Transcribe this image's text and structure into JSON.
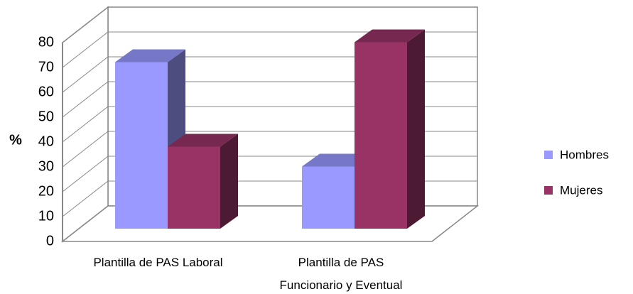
{
  "chart_data": {
    "type": "bar3d",
    "y_label": "%",
    "categories": [
      "Plantilla de PAS Laboral",
      "Plantilla de PAS Funcionario y Eventual"
    ],
    "series": [
      {
        "name": "Hombres",
        "color": "#9999ff",
        "values": [
          67,
          25
        ]
      },
      {
        "name": "Mujeres",
        "color": "#993366",
        "values": [
          33,
          75
        ]
      }
    ],
    "ylim": [
      0,
      80
    ],
    "yticks": [
      0,
      10,
      20,
      30,
      40,
      50,
      60,
      70,
      80
    ],
    "grid": true,
    "legend": "right"
  }
}
